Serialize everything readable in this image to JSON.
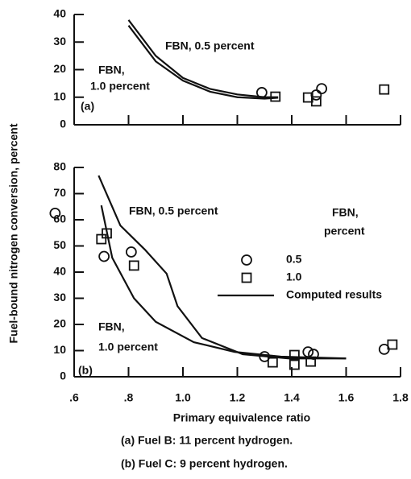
{
  "ylabel": "Fuel-bound nitrogen conversion, percent",
  "xlabel": "Primary equivalence ratio",
  "captions": [
    "(a) Fuel B: 11 percent hydrogen.",
    "(b) Fuel C: 9 percent hydrogen."
  ],
  "chart_data": [
    {
      "type": "scatter",
      "panel_label": "(a)",
      "xlim": [
        0.6,
        1.8
      ],
      "xticks": [
        0.6,
        0.8,
        1.0,
        1.2,
        1.4,
        1.6,
        1.8
      ],
      "ylim": [
        0,
        40
      ],
      "yticks": [
        0,
        10,
        20,
        30,
        40
      ],
      "series": [
        {
          "marker": "circle",
          "x": [
            1.29,
            1.49,
            1.51
          ],
          "values": [
            11.7,
            10.8,
            13.1
          ]
        },
        {
          "marker": "square",
          "x": [
            1.34,
            1.46,
            1.49,
            1.74
          ],
          "values": [
            10.2,
            9.9,
            8.5,
            12.8
          ]
        }
      ],
      "curves": [
        {
          "label": [
            "FBN, 0.5 percent"
          ],
          "x": [
            0.8,
            0.9,
            1.0,
            1.1,
            1.2,
            1.3,
            1.35
          ],
          "values": [
            38,
            25,
            17,
            13,
            11,
            10,
            10
          ]
        },
        {
          "label": [
            "FBN,",
            "1.0 percent"
          ],
          "x": [
            0.8,
            0.9,
            1.0,
            1.1,
            1.2,
            1.3,
            1.35
          ],
          "values": [
            36,
            23,
            16,
            12,
            10,
            9.5,
            9.8
          ]
        }
      ]
    },
    {
      "type": "scatter",
      "panel_label": "(b)",
      "xlim": [
        0.6,
        1.8
      ],
      "xticks": [
        {
          "value": 0.6,
          "label": ".6"
        },
        {
          "value": 0.8,
          "label": ".8"
        },
        {
          "value": 1.0,
          "label": "1.0"
        },
        {
          "value": 1.2,
          "label": "1.2"
        },
        {
          "value": 1.4,
          "label": "1.4"
        },
        {
          "value": 1.6,
          "label": "1.6"
        },
        {
          "value": 1.8,
          "label": "1.8"
        }
      ],
      "ylim": [
        0,
        80
      ],
      "yticks": [
        0,
        10,
        20,
        30,
        40,
        50,
        60,
        70,
        80
      ],
      "legend_title": [
        "FBN,",
        "percent"
      ],
      "line_legend": "Computed results",
      "series": [
        {
          "name": "0.5",
          "marker": "circle",
          "x": [
            0.53,
            0.71,
            0.81,
            1.3,
            1.46,
            1.48,
            1.74
          ],
          "values": [
            62.5,
            46,
            47.7,
            7.7,
            9.5,
            8.6,
            10.5
          ]
        },
        {
          "name": "1.0",
          "marker": "square",
          "x": [
            0.7,
            0.72,
            0.82,
            1.33,
            1.41,
            1.41,
            1.47,
            1.77
          ],
          "values": [
            52.6,
            54.8,
            42.5,
            5.5,
            8.3,
            4.6,
            5.8,
            12.3
          ]
        }
      ],
      "curves": [
        {
          "label": [
            "FBN, 0.5 percent"
          ],
          "x": [
            0.69,
            0.77,
            0.86,
            0.94,
            0.98,
            1.07,
            1.22,
            1.39,
            1.54,
            1.6
          ],
          "values": [
            76.9,
            57.8,
            48.6,
            39.4,
            27,
            14.8,
            8.6,
            7,
            7,
            7
          ]
        },
        {
          "label": [
            "FBN,",
            "1.0 percent"
          ],
          "x": [
            0.7,
            0.74,
            0.82,
            0.9,
            1.04,
            1.19,
            1.36,
            1.6
          ],
          "values": [
            65.5,
            45.5,
            30,
            21,
            13.2,
            9.5,
            7.7,
            7
          ]
        }
      ]
    }
  ]
}
